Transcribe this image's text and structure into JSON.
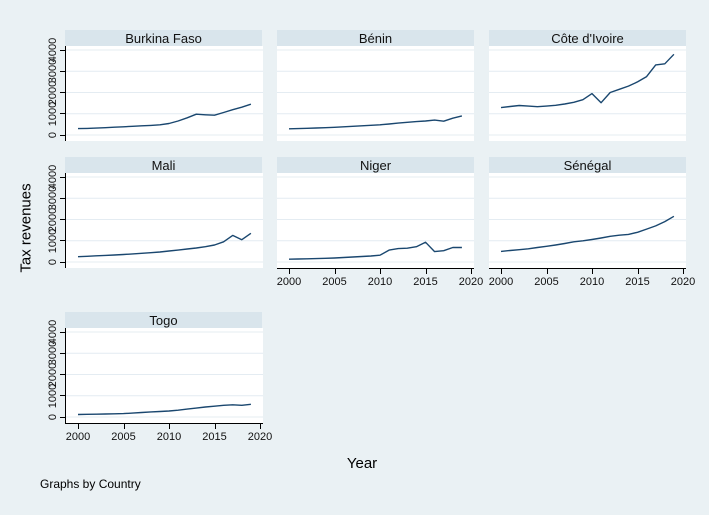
{
  "figure": {
    "ylabel": "Tax revenues",
    "xlabel": "Year",
    "note": "Graphs by Country"
  },
  "axes": {
    "x_ticks": [
      "2000",
      "2005",
      "2010",
      "2015",
      "2020"
    ],
    "y_ticks": [
      "0",
      "1000",
      "2000",
      "3000",
      "4000"
    ]
  },
  "colors": {
    "background": "#eaf1f4",
    "title_band": "#d9e5ec",
    "plot_background": "#ffffff",
    "gridline": "#e4ecf2",
    "line": "#1a476f",
    "axis": "#000000"
  },
  "chart_data": {
    "type": "line",
    "title": "",
    "xlabel": "Year",
    "ylabel": "Tax revenues",
    "x": [
      2000,
      2001,
      2002,
      2003,
      2004,
      2005,
      2006,
      2007,
      2008,
      2009,
      2010,
      2011,
      2012,
      2013,
      2014,
      2015,
      2016,
      2017,
      2018,
      2019
    ],
    "xlim": [
      1999,
      2020.5
    ],
    "ylim": [
      0,
      4200
    ],
    "grid": true,
    "legend": "none",
    "layout": "small-multiples by Country, 3 columns",
    "panels": [
      {
        "title": "Burkina Faso",
        "row": 0,
        "col": 0,
        "y_axis": true,
        "x_axis": false,
        "values": [
          300,
          310,
          325,
          345,
          365,
          385,
          410,
          435,
          450,
          480,
          540,
          660,
          810,
          980,
          950,
          930,
          1060,
          1190,
          1310,
          1450
        ]
      },
      {
        "title": "Bénin",
        "row": 0,
        "col": 1,
        "y_axis": false,
        "x_axis": false,
        "values": [
          290,
          300,
          315,
          330,
          345,
          360,
          385,
          410,
          435,
          455,
          480,
          520,
          560,
          600,
          630,
          660,
          700,
          650,
          790,
          900
        ]
      },
      {
        "title": "Côte d'Ivoire",
        "row": 0,
        "col": 2,
        "y_axis": false,
        "x_axis": false,
        "values": [
          1290,
          1340,
          1390,
          1360,
          1330,
          1360,
          1400,
          1460,
          1540,
          1660,
          1950,
          1520,
          2000,
          2150,
          2300,
          2500,
          2750,
          3300,
          3350,
          3800
        ]
      },
      {
        "title": "Mali",
        "row": 1,
        "col": 0,
        "y_axis": true,
        "x_axis": false,
        "values": [
          250,
          270,
          290,
          310,
          330,
          355,
          380,
          410,
          440,
          470,
          520,
          560,
          610,
          660,
          720,
          800,
          950,
          1250,
          1050,
          1350
        ]
      },
      {
        "title": "Niger",
        "row": 1,
        "col": 1,
        "y_axis": false,
        "x_axis": true,
        "values": [
          130,
          140,
          150,
          160,
          175,
          190,
          210,
          235,
          260,
          280,
          320,
          560,
          630,
          650,
          720,
          930,
          490,
          530,
          680,
          680
        ]
      },
      {
        "title": "Sénégal",
        "row": 1,
        "col": 2,
        "y_axis": false,
        "x_axis": true,
        "values": [
          500,
          540,
          580,
          620,
          680,
          740,
          800,
          870,
          950,
          1000,
          1060,
          1130,
          1210,
          1260,
          1300,
          1400,
          1550,
          1700,
          1900,
          2150
        ]
      },
      {
        "title": "Togo",
        "row": 2,
        "col": 0,
        "y_axis": true,
        "x_axis": true,
        "values": [
          120,
          125,
          130,
          140,
          150,
          160,
          185,
          210,
          240,
          260,
          280,
          320,
          370,
          420,
          470,
          510,
          550,
          575,
          550,
          600
        ]
      }
    ]
  }
}
